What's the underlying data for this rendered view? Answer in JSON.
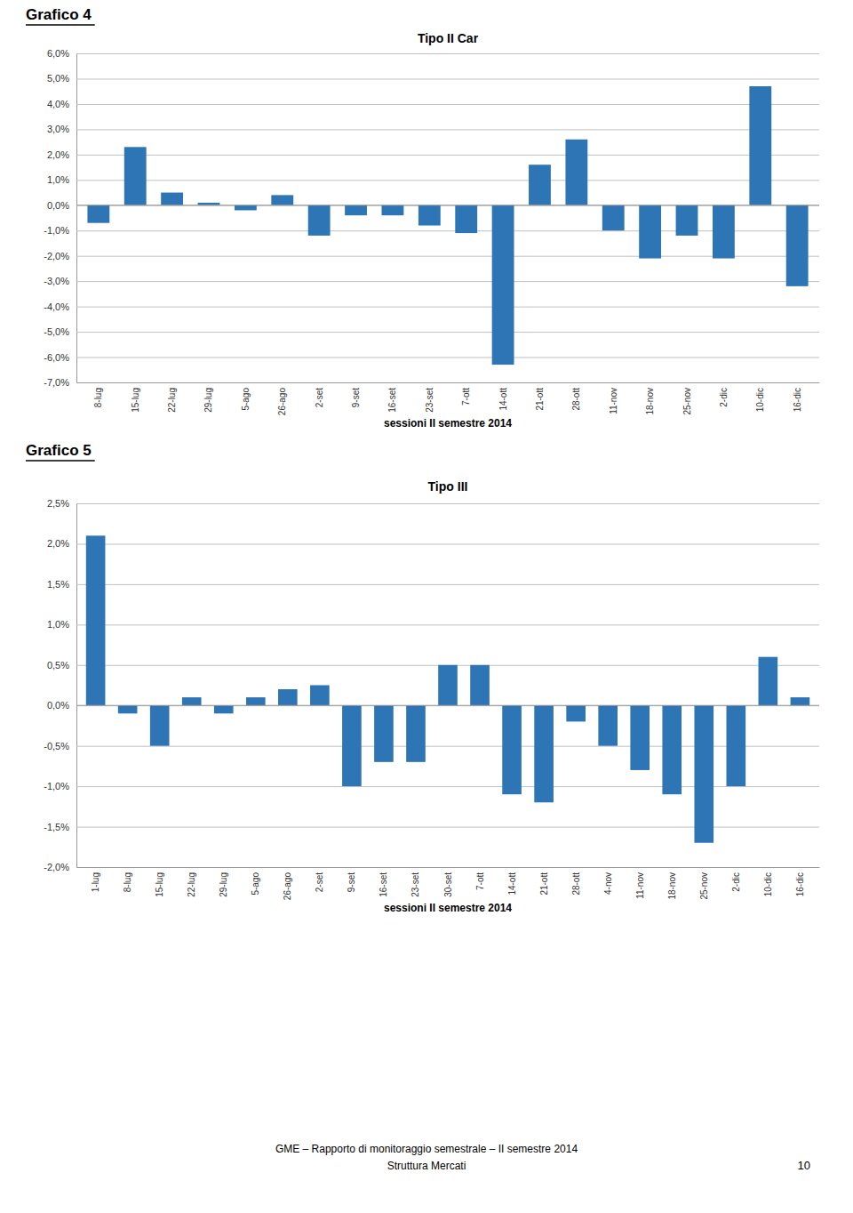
{
  "chart_data": [
    {
      "type": "bar",
      "title": "Tipo II Car",
      "annotations": [
        "Grafico 4"
      ],
      "categories": [
        "8-lug",
        "15-lug",
        "22-lug",
        "29-lug",
        "5-ago",
        "26-ago",
        "2-set",
        "9-set",
        "16-set",
        "23-set",
        "7-ott",
        "14-ott",
        "21-ott",
        "28-ott",
        "11-nov",
        "18-nov",
        "25-nov",
        "2-dic",
        "10-dic",
        "16-dic"
      ],
      "values": [
        -0.007,
        0.023,
        0.005,
        0.001,
        -0.002,
        0.004,
        -0.012,
        -0.004,
        -0.004,
        -0.008,
        -0.011,
        -0.063,
        0.016,
        0.026,
        -0.01,
        -0.021,
        -0.012,
        -0.021,
        0.047,
        -0.032
      ],
      "color": "#2E75B6",
      "ylim": [
        -0.07,
        0.06
      ],
      "yticks": [
        {
          "value": -0.07,
          "label": "-7,0%"
        },
        {
          "value": -0.06,
          "label": "-6,0%"
        },
        {
          "value": -0.05,
          "label": "-5,0%"
        },
        {
          "value": -0.04,
          "label": "-4,0%"
        },
        {
          "value": -0.03,
          "label": "-3,0%"
        },
        {
          "value": -0.02,
          "label": "-2,0%"
        },
        {
          "value": -0.01,
          "label": "-1,0%"
        },
        {
          "value": 0.0,
          "label": "0,0%"
        },
        {
          "value": 0.01,
          "label": "1,0%"
        },
        {
          "value": 0.02,
          "label": "2,0%"
        },
        {
          "value": 0.03,
          "label": "3,0%"
        },
        {
          "value": 0.04,
          "label": "4,0%"
        },
        {
          "value": 0.05,
          "label": "5,0%"
        },
        {
          "value": 0.06,
          "label": "6,0%"
        }
      ],
      "xlabel": "sessioni II semestre 2014",
      "grid": true
    },
    {
      "type": "bar",
      "title": "Tipo III",
      "annotations": [
        "Grafico 5"
      ],
      "categories": [
        "1-lug",
        "8-lug",
        "15-lug",
        "22-lug",
        "29-lug",
        "5-ago",
        "26-ago",
        "2-set",
        "9-set",
        "16-set",
        "23-set",
        "30-set",
        "7-ott",
        "14-ott",
        "21-ott",
        "28-ott",
        "4-nov",
        "11-nov",
        "18-nov",
        "25-nov",
        "2-dic",
        "10-dic",
        "16-dic"
      ],
      "values": [
        0.021,
        -0.001,
        -0.005,
        0.001,
        -0.001,
        0.001,
        0.002,
        0.0025,
        -0.01,
        -0.007,
        -0.007,
        0.005,
        0.005,
        -0.011,
        -0.012,
        -0.002,
        -0.005,
        -0.008,
        -0.011,
        -0.017,
        -0.01,
        0.006,
        0.001
      ],
      "color": "#2E75B6",
      "ylim": [
        -0.02,
        0.025
      ],
      "yticks": [
        {
          "value": -0.02,
          "label": "-2,0%"
        },
        {
          "value": -0.015,
          "label": "-1,5%"
        },
        {
          "value": -0.01,
          "label": "-1,0%"
        },
        {
          "value": -0.005,
          "label": "-0,5%"
        },
        {
          "value": 0.0,
          "label": "0,0%"
        },
        {
          "value": 0.005,
          "label": "0,5%"
        },
        {
          "value": 0.01,
          "label": "1,0%"
        },
        {
          "value": 0.015,
          "label": "1,5%"
        },
        {
          "value": 0.02,
          "label": "2,0%"
        },
        {
          "value": 0.025,
          "label": "2,5%"
        }
      ],
      "xlabel": "sessioni II semestre 2014",
      "grid": true
    }
  ],
  "annotations": [
    "GME – Rapporto di monitoraggio semestrale – II semestre 2014",
    "Struttura Mercati",
    "10"
  ]
}
